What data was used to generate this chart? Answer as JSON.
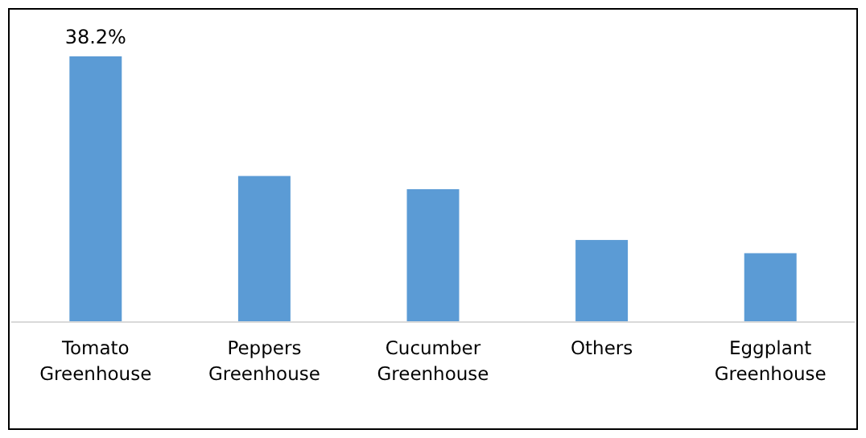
{
  "chart_data": {
    "type": "bar",
    "categories": [
      "Tomato Greenhouse",
      "Peppers Greenhouse",
      "Cucumber Greenhouse",
      "Others",
      "Eggplant Greenhouse"
    ],
    "values": [
      38.2,
      21.0,
      19.1,
      11.8,
      9.9
    ],
    "value_labels": [
      "38.2%",
      null,
      null,
      null,
      null
    ],
    "color": "#5b9bd5"
  }
}
